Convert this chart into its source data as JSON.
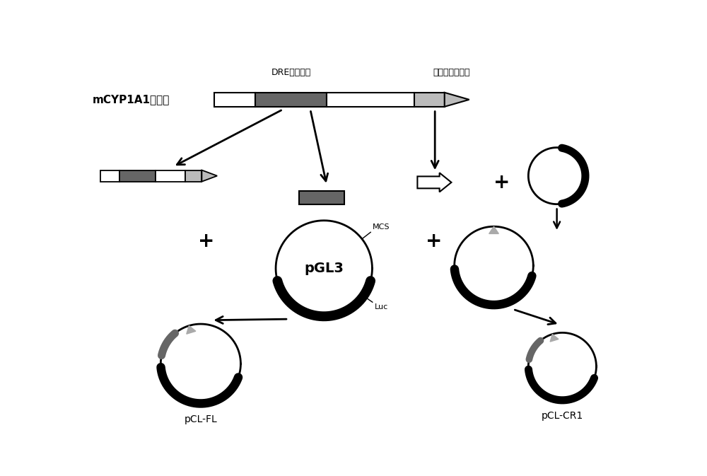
{
  "bg_color": "#ffffff",
  "dark_gray": "#666666",
  "light_gray": "#bbbbbb",
  "black": "#000000",
  "title_label": "mCYP1A1启动子",
  "label_dre": "DRE富集区段",
  "label_promoter": "启动子基本区段",
  "label_MCS": "MCS",
  "label_Luc": "Luc",
  "label_pGL3": "pGL3",
  "label_pCL_FL": "pCL-FL",
  "label_pCL_CR1": "pCL-CR1"
}
